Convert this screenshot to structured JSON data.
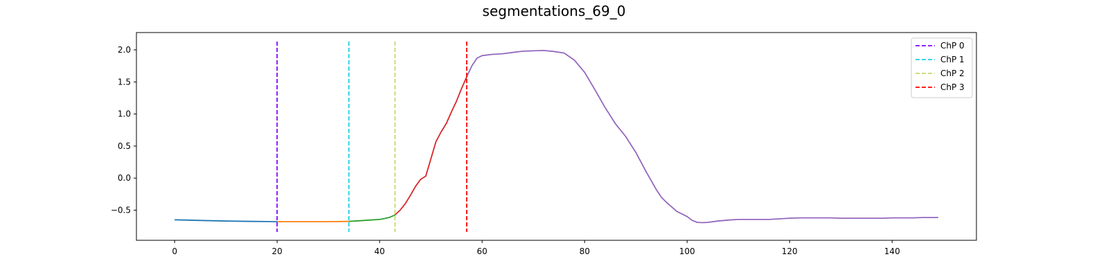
{
  "chart_data": {
    "type": "line",
    "title": "segmentations_69_0",
    "xlabel": "",
    "ylabel": "",
    "xlim": [
      -7.45,
      156.45
    ],
    "ylim": [
      -0.97,
      2.27
    ],
    "x_ticks": [
      0,
      20,
      40,
      60,
      80,
      100,
      120,
      140
    ],
    "y_ticks": [
      -0.5,
      0.0,
      0.5,
      1.0,
      1.5,
      2.0
    ],
    "y_tick_labels": [
      "−0.5",
      "0.0",
      "0.5",
      "1.0",
      "1.5",
      "2.0"
    ],
    "grid": false,
    "legend_position": "top-right",
    "segments": [
      {
        "color": "#1f77b4",
        "x": [
          0,
          5,
          10,
          15,
          20
        ],
        "y": [
          -0.65,
          -0.66,
          -0.67,
          -0.675,
          -0.68
        ]
      },
      {
        "color": "#ff7f0e",
        "x": [
          20,
          25,
          30,
          34
        ],
        "y": [
          -0.68,
          -0.68,
          -0.68,
          -0.675
        ]
      },
      {
        "color": "#2ca02c",
        "x": [
          34,
          36,
          38,
          40,
          41,
          42,
          43
        ],
        "y": [
          -0.675,
          -0.665,
          -0.655,
          -0.645,
          -0.63,
          -0.61,
          -0.575
        ]
      },
      {
        "color": "#d62728",
        "x": [
          43,
          44,
          45,
          46,
          47,
          48,
          49,
          50,
          51,
          52,
          53,
          54,
          55,
          56,
          57
        ],
        "y": [
          -0.575,
          -0.5,
          -0.4,
          -0.27,
          -0.13,
          -0.02,
          0.03,
          0.3,
          0.57,
          0.72,
          0.85,
          1.03,
          1.2,
          1.4,
          1.58
        ]
      },
      {
        "color": "#9467bd",
        "x": [
          57,
          58,
          59,
          60,
          62,
          64,
          66,
          68,
          70,
          72,
          74,
          76,
          78,
          80,
          82,
          84,
          86,
          88,
          90,
          92,
          94,
          95,
          96,
          98,
          100,
          101,
          102,
          103,
          104,
          106,
          108,
          110,
          112,
          114,
          116,
          118,
          120,
          122,
          124,
          126,
          128,
          130,
          132,
          134,
          136,
          138,
          140,
          142,
          144,
          146,
          148,
          149
        ],
        "y": [
          1.58,
          1.75,
          1.87,
          1.91,
          1.93,
          1.94,
          1.96,
          1.98,
          1.985,
          1.99,
          1.975,
          1.95,
          1.84,
          1.65,
          1.38,
          1.1,
          0.85,
          0.65,
          0.4,
          0.1,
          -0.18,
          -0.3,
          -0.38,
          -0.52,
          -0.6,
          -0.66,
          -0.69,
          -0.695,
          -0.69,
          -0.67,
          -0.655,
          -0.645,
          -0.645,
          -0.645,
          -0.645,
          -0.635,
          -0.625,
          -0.62,
          -0.62,
          -0.62,
          -0.62,
          -0.625,
          -0.625,
          -0.625,
          -0.625,
          -0.625,
          -0.62,
          -0.62,
          -0.62,
          -0.615,
          -0.615,
          -0.615
        ]
      }
    ],
    "changepoints": [
      {
        "name": "ChP 0",
        "x": 20,
        "color": "#8000ff"
      },
      {
        "name": "ChP 1",
        "x": 34,
        "color": "#1ad1e5"
      },
      {
        "name": "ChP 2",
        "x": 43,
        "color": "#c6d870"
      },
      {
        "name": "ChP 3",
        "x": 57,
        "color": "#ff0000"
      }
    ]
  }
}
